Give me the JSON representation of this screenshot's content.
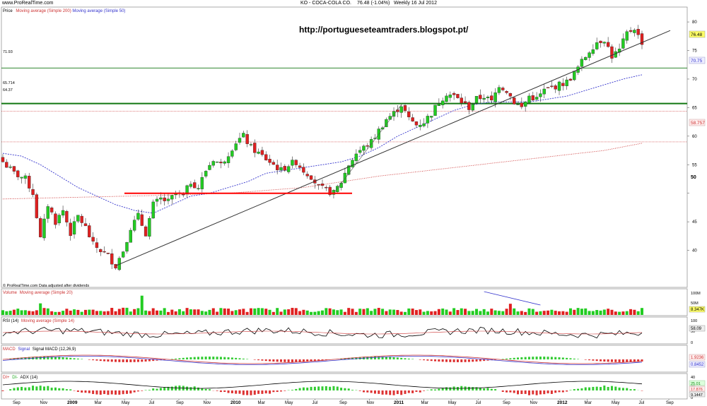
{
  "header": {
    "brand": "www.ProRealTime.com",
    "symbol": "KO - COCA-COLA CO.",
    "price": "76.48 (-1.04%)",
    "period": "Weekly 16 Jul 2012"
  },
  "main": {
    "legend": {
      "prefix": "Price",
      "ma200": "Moving average (Simple 200)",
      "ma50": "Moving average (Simple 50)"
    },
    "watermark": "http://portugueseteamtraders.blogspot.pt/",
    "footer": "© ProRealTime.com  Data adjusted after dividends",
    "level_labels": {
      "upper": "71.93",
      "middle": "65.714",
      "lower": "64.37"
    },
    "axis_badges": {
      "last": "76.48",
      "ma50": "70.75",
      "ma200": "58.757"
    },
    "bold_tick": "50"
  },
  "volume": {
    "legend_a": "Volume",
    "legend_b": "Moving average (Simple 20)",
    "ticks": [
      "100M",
      "50M"
    ],
    "badge": "8.347K"
  },
  "rsi": {
    "legend_a": "RSI (14)",
    "legend_b": "Moving average (Simple 14)",
    "ticks": [
      "100",
      "50",
      "0"
    ],
    "badge": "58.09"
  },
  "macd": {
    "legend_a": "MACD",
    "legend_b": "Signal",
    "legend_c": "Signal MACD (12,26,9)",
    "badges": [
      "1.9236",
      "0.8452"
    ]
  },
  "dmi": {
    "legend_a": "DI+",
    "legend_b": "DI-",
    "legend_c": "ADX (14)",
    "ticks": [
      "40",
      "20",
      "0"
    ],
    "badges": [
      "25.01",
      "17.876",
      "9.1447"
    ]
  },
  "time_axis": [
    "Sep",
    "Nov",
    "2009",
    "Mar",
    "May",
    "Jul",
    "Sep",
    "Nov",
    "2010",
    "Mar",
    "May",
    "Jul",
    "Sep",
    "Nov",
    "2011",
    "Mar",
    "May",
    "Jul",
    "Sep",
    "Nov",
    "2012",
    "Mar",
    "May",
    "Jul",
    "Sep"
  ],
  "colors": {
    "up": "#22cc22",
    "down": "#e02020",
    "ma50": "#3333cc",
    "ma200": "#cc3333",
    "level": "#117711",
    "support": "#ff0000"
  },
  "chart_data": {
    "type": "candlestick",
    "title": "KO - COCA-COLA CO. 76.48 (-1.04%) Weekly 16 Jul 2012",
    "ylim": [
      35,
      81
    ],
    "y_ticks": [
      40,
      45,
      50,
      55,
      60,
      65,
      70,
      75,
      80
    ],
    "x_month_labels": [
      "Sep",
      "Nov",
      "2009",
      "Mar",
      "May",
      "Jul",
      "Sep",
      "Nov",
      "2010",
      "Mar",
      "May",
      "Jul",
      "Sep",
      "Nov",
      "2011",
      "Mar",
      "May",
      "Jul",
      "Sep",
      "Nov",
      "2012",
      "Mar",
      "May",
      "Jul",
      "Sep"
    ],
    "close_anchors": [
      [
        0,
        55.5
      ],
      [
        3,
        53.5
      ],
      [
        6,
        52.5
      ],
      [
        8,
        50
      ],
      [
        9,
        46
      ],
      [
        10,
        42
      ],
      [
        12,
        48
      ],
      [
        14,
        45
      ],
      [
        16,
        47
      ],
      [
        18,
        43
      ],
      [
        20,
        46
      ],
      [
        22,
        44
      ],
      [
        24,
        41
      ],
      [
        26,
        40
      ],
      [
        28,
        39
      ],
      [
        30,
        37.3
      ],
      [
        32,
        40
      ],
      [
        34,
        44
      ],
      [
        36,
        46
      ],
      [
        38,
        43
      ],
      [
        40,
        48
      ],
      [
        42,
        49
      ],
      [
        44,
        48.5
      ],
      [
        46,
        50
      ],
      [
        48,
        49.5
      ],
      [
        50,
        52
      ],
      [
        52,
        51
      ],
      [
        54,
        54
      ],
      [
        56,
        56
      ],
      [
        58,
        55
      ],
      [
        60,
        57
      ],
      [
        62,
        59
      ],
      [
        64,
        60
      ],
      [
        66,
        58
      ],
      [
        68,
        57
      ],
      [
        70,
        56
      ],
      [
        72,
        55
      ],
      [
        74,
        54
      ],
      [
        76,
        55
      ],
      [
        78,
        55.5
      ],
      [
        80,
        54
      ],
      [
        82,
        53
      ],
      [
        84,
        51
      ],
      [
        86,
        50.5
      ],
      [
        88,
        50
      ],
      [
        90,
        52
      ],
      [
        92,
        55
      ],
      [
        94,
        57
      ],
      [
        96,
        58
      ],
      [
        98,
        59
      ],
      [
        100,
        61
      ],
      [
        102,
        63
      ],
      [
        104,
        64
      ],
      [
        106,
        65.5
      ],
      [
        108,
        63
      ],
      [
        110,
        62
      ],
      [
        112,
        62.5
      ],
      [
        114,
        64
      ],
      [
        116,
        66
      ],
      [
        118,
        67.5
      ],
      [
        120,
        67
      ],
      [
        122,
        66
      ],
      [
        124,
        65
      ],
      [
        126,
        66.5
      ],
      [
        128,
        67
      ],
      [
        130,
        66
      ],
      [
        132,
        69
      ],
      [
        134,
        68
      ],
      [
        136,
        66
      ],
      [
        138,
        65
      ],
      [
        140,
        67
      ],
      [
        142,
        66.5
      ],
      [
        144,
        68
      ],
      [
        146,
        68.5
      ],
      [
        148,
        69
      ],
      [
        150,
        69.5
      ],
      [
        152,
        71
      ],
      [
        154,
        73
      ],
      [
        156,
        75
      ],
      [
        158,
        76.5
      ],
      [
        160,
        77
      ],
      [
        162,
        74
      ],
      [
        164,
        75
      ],
      [
        166,
        78
      ],
      [
        168,
        79
      ],
      [
        169,
        77.5
      ],
      [
        170,
        76.48
      ]
    ],
    "horizontal_levels": [
      71.93,
      65.714,
      64.37,
      59
    ],
    "support_segment": {
      "x": [
        2008.9,
        2010.6
      ],
      "y": 50
    },
    "trendline": {
      "from": [
        2009.2,
        37.3
      ],
      "to": [
        2012.75,
        76.5
      ]
    },
    "ma50": {
      "name": "Moving average (Simple 50)",
      "anchors": [
        [
          0,
          57
        ],
        [
          5,
          56.5
        ],
        [
          10,
          55
        ],
        [
          15,
          53
        ],
        [
          20,
          51
        ],
        [
          25,
          49.5
        ],
        [
          30,
          48
        ],
        [
          35,
          47
        ],
        [
          40,
          46.5
        ],
        [
          45,
          48
        ],
        [
          50,
          49.5
        ],
        [
          55,
          50
        ],
        [
          60,
          51
        ],
        [
          65,
          52
        ],
        [
          70,
          53.5
        ],
        [
          75,
          54
        ],
        [
          80,
          54.5
        ],
        [
          85,
          55
        ],
        [
          90,
          55.5
        ],
        [
          95,
          56.5
        ],
        [
          100,
          58
        ],
        [
          105,
          60
        ],
        [
          110,
          61.5
        ],
        [
          115,
          63
        ],
        [
          120,
          64.5
        ],
        [
          125,
          65.5
        ],
        [
          130,
          66
        ],
        [
          135,
          66
        ],
        [
          140,
          66
        ],
        [
          145,
          66.5
        ],
        [
          150,
          67
        ],
        [
          155,
          68
        ],
        [
          160,
          69
        ],
        [
          165,
          70
        ],
        [
          170,
          70.75
        ]
      ]
    },
    "ma200": {
      "name": "Moving average (Simple 200)",
      "anchors": [
        [
          0,
          49
        ],
        [
          20,
          49.3
        ],
        [
          40,
          49.6
        ],
        [
          60,
          50
        ],
        [
          80,
          51
        ],
        [
          100,
          53
        ],
        [
          120,
          54.5
        ],
        [
          140,
          56
        ],
        [
          160,
          57.5
        ],
        [
          170,
          58.757
        ]
      ]
    },
    "volume_series": {
      "name": "Volume",
      "ylim": [
        0,
        110
      ],
      "typical": 25,
      "peaks": [
        [
          37,
          100
        ],
        [
          10,
          60
        ],
        [
          135,
          58
        ]
      ]
    },
    "rsi_series": {
      "name": "RSI (14)",
      "ylim": [
        0,
        100
      ],
      "last": 58.09
    },
    "macd_series": {
      "name": "MACD",
      "last": 1.9236,
      "signal_last": 0.8452
    },
    "dmi_series": {
      "name": "ADX (14)",
      "ylim": [
        0,
        45
      ],
      "last_di_plus": 25.01,
      "last_di_minus": 17.876,
      "last_adx": 9.1447
    }
  }
}
